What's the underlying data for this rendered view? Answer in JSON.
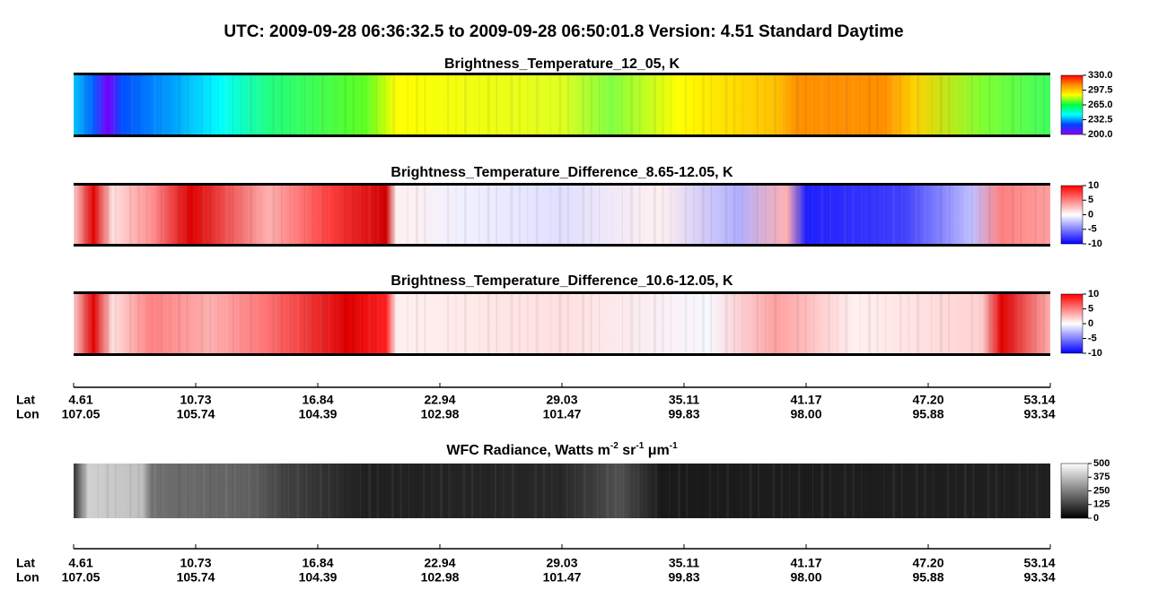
{
  "title": "UTC:  2009-09-28   06:36:32.5  to  2009-09-28   06:50:01.8    Version: 4.51  Standard Daytime",
  "chart_data": [
    {
      "type": "heatmap",
      "title": "Brightness_Temperature_12_05, K",
      "zlim": [
        200,
        330
      ],
      "zticks": [
        {
          "value": 330,
          "label": "330.0"
        },
        {
          "value": 297.5,
          "label": "297.5"
        },
        {
          "value": 265,
          "label": "265.0"
        },
        {
          "value": 232.5,
          "label": "232.5"
        },
        {
          "value": 200,
          "label": "200.0"
        }
      ],
      "colormap": [
        "#8a00ff",
        "#0040ff",
        "#00ffff",
        "#00ff40",
        "#ffff00",
        "#ff9000",
        "#ff0000"
      ]
    },
    {
      "type": "heatmap",
      "title": "Brightness_Temperature_Difference_8.65-12.05, K",
      "zlim": [
        -10,
        10
      ],
      "zticks": [
        10,
        5,
        0,
        -5,
        -10
      ],
      "colormap": [
        "#0000ff",
        "#ffffff",
        "#ff0000"
      ]
    },
    {
      "type": "heatmap",
      "title": "Brightness_Temperature_Difference_10.6-12.05, K",
      "zlim": [
        -10,
        10
      ],
      "zticks": [
        10,
        5,
        0,
        -5,
        -10
      ],
      "colormap": [
        "#0000ff",
        "#ffffff",
        "#ff0000"
      ]
    },
    {
      "type": "heatmap",
      "title_parts": [
        "WFC Radiance, Watts m",
        "-2",
        " sr",
        "-1",
        " μm",
        "-1"
      ],
      "zlim": [
        0,
        500
      ],
      "zticks": [
        500,
        375,
        250,
        125,
        0
      ],
      "colormap": [
        "#000000",
        "#ffffff"
      ]
    }
  ],
  "axis": {
    "row_labels": [
      "Lat",
      "Lon"
    ],
    "lat": [
      "4.61",
      "10.73",
      "16.84",
      "22.94",
      "29.03",
      "35.11",
      "41.17",
      "47.20",
      "53.14"
    ],
    "lon": [
      "107.05",
      "105.74",
      "104.39",
      "102.98",
      "101.47",
      "99.83",
      "98.00",
      "95.88",
      "93.34"
    ]
  }
}
